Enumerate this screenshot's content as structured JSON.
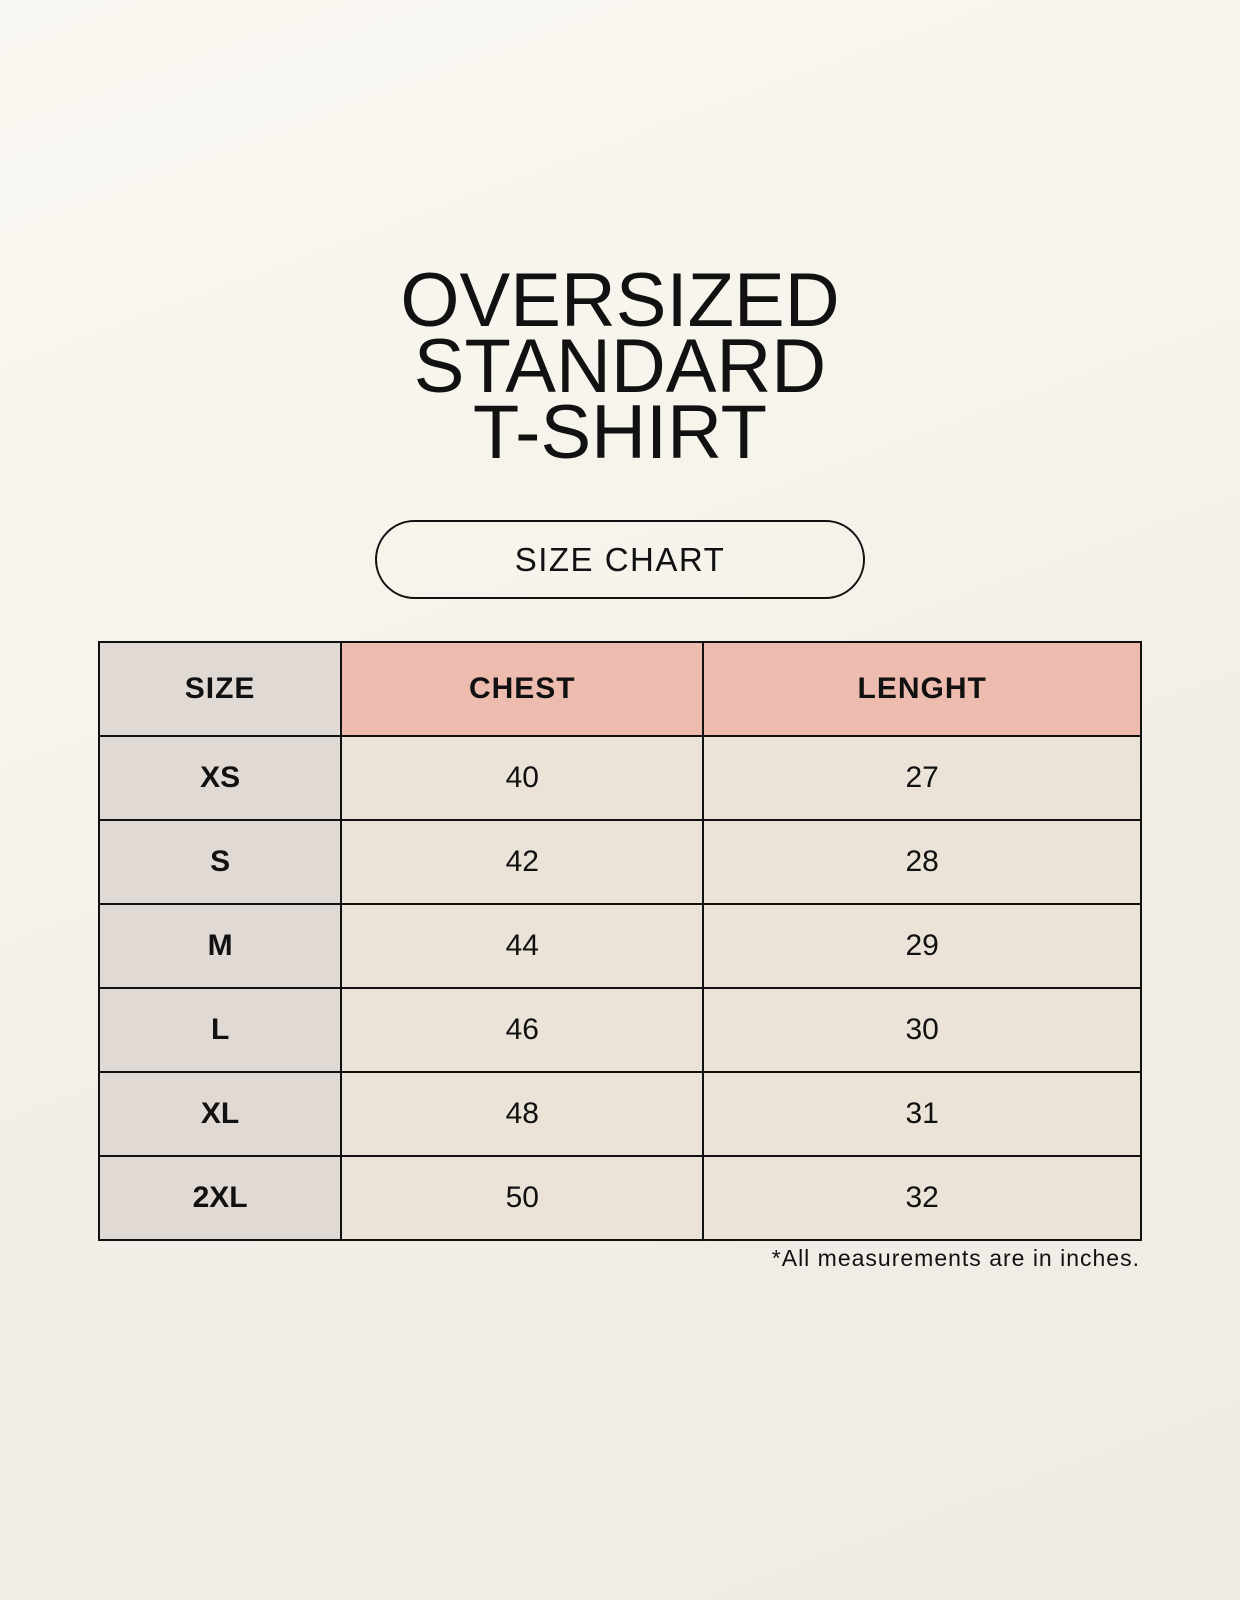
{
  "title_lines": [
    "OVERSIZED",
    "STANDARD",
    "T-SHIRT"
  ],
  "badge": "SIZE CHART",
  "table": {
    "headers": [
      "SIZE",
      "CHEST",
      "LENGHT"
    ],
    "rows": [
      [
        "XS",
        "40",
        "27"
      ],
      [
        "S",
        "42",
        "28"
      ],
      [
        "M",
        "44",
        "29"
      ],
      [
        "L",
        "46",
        "30"
      ],
      [
        "XL",
        "48",
        "31"
      ],
      [
        "2XL",
        "50",
        "32"
      ]
    ]
  },
  "footnote": "*All measurements are in inches.",
  "colors": {
    "size_column": "#e1d9d3",
    "header_accent": "#edbcae",
    "cell": "#ebe3d8"
  }
}
